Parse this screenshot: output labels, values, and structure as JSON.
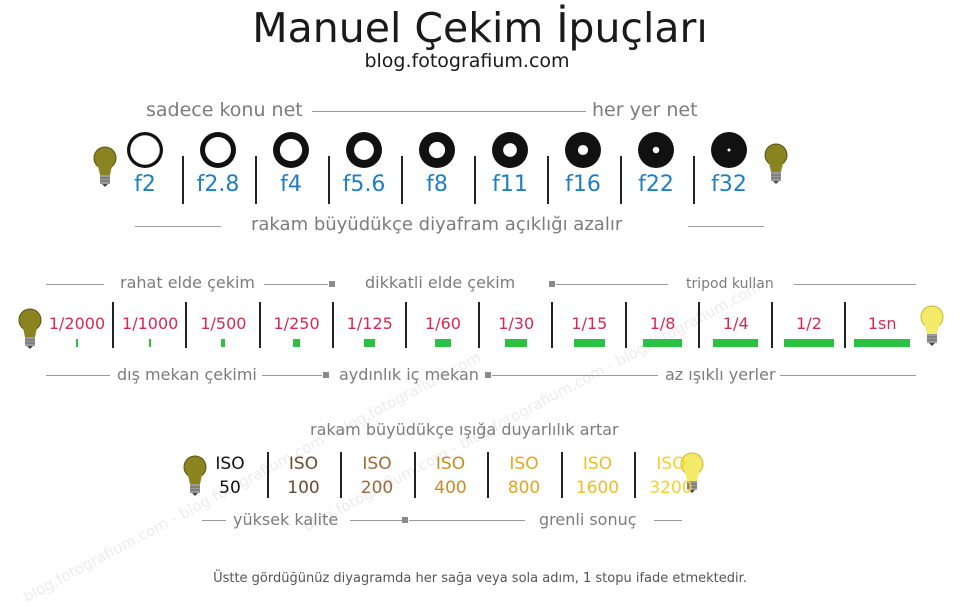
{
  "title": "Manuel Çekim İpuçları",
  "subtitle": "blog.fotografium.com",
  "aperture": {
    "label_left": "sadece konu net",
    "label_right": "her yer net",
    "stops": [
      {
        "label": "f2",
        "hole": 0.82
      },
      {
        "label": "f2.8",
        "hole": 0.72
      },
      {
        "label": "f4",
        "hole": 0.62
      },
      {
        "label": "f5.6",
        "hole": 0.55
      },
      {
        "label": "f8",
        "hole": 0.45
      },
      {
        "label": "f11",
        "hole": 0.38
      },
      {
        "label": "f16",
        "hole": 0.28
      },
      {
        "label": "f22",
        "hole": 0.18
      },
      {
        "label": "f32",
        "hole": 0.08
      }
    ],
    "caption": "rakam büyüdükçe diyafram açıklığı azalır"
  },
  "shutter": {
    "top_labels": [
      "rahat elde çekim",
      "dikkatli elde çekim",
      "tripod kullan"
    ],
    "speeds": [
      {
        "label": "1/2000",
        "bar": 0.02
      },
      {
        "label": "1/1000",
        "bar": 0.04
      },
      {
        "label": "1/500",
        "bar": 0.07
      },
      {
        "label": "1/250",
        "bar": 0.12
      },
      {
        "label": "1/125",
        "bar": 0.2
      },
      {
        "label": "1/60",
        "bar": 0.3
      },
      {
        "label": "1/30",
        "bar": 0.4
      },
      {
        "label": "1/15",
        "bar": 0.55
      },
      {
        "label": "1/8",
        "bar": 0.7
      },
      {
        "label": "1/4",
        "bar": 0.8
      },
      {
        "label": "1/2",
        "bar": 0.9
      },
      {
        "label": "1sn",
        "bar": 1.0
      }
    ],
    "bottom_labels": [
      "dış mekan çekimi",
      "aydınlık iç mekan",
      "az ışıklı yerler"
    ]
  },
  "iso": {
    "caption": "rakam büyüdükçe ışığa duyarlılık artar",
    "values": [
      {
        "top": "ISO",
        "bottom": "50",
        "color": "#111111"
      },
      {
        "top": "ISO",
        "bottom": "100",
        "color": "#6b4a2a"
      },
      {
        "top": "ISO",
        "bottom": "200",
        "color": "#9a6a3a"
      },
      {
        "top": "ISO",
        "bottom": "400",
        "color": "#c98a22"
      },
      {
        "top": "ISO",
        "bottom": "800",
        "color": "#e0a81a"
      },
      {
        "top": "ISO",
        "bottom": "1600",
        "color": "#ecc020"
      },
      {
        "top": "ISO",
        "bottom": "3200",
        "color": "#f5d12a"
      }
    ],
    "label_left": "yüksek kalite",
    "label_right": "grenli sonuç"
  },
  "footnote": "Üstte gördüğünüz diyagramda her sağa veya sola adım, 1 stopu ifade etmektedir.",
  "watermark": "blog.fotografium.com - blog.fotografium.com - blog.fotografium.com",
  "colors": {
    "aperture_text": "#1e7fc2",
    "shutter_text": "#d52a52",
    "bar_green": "#2bc244",
    "bulb_dark": "#8a8420",
    "bulb_bright": "#f4ea6a"
  }
}
